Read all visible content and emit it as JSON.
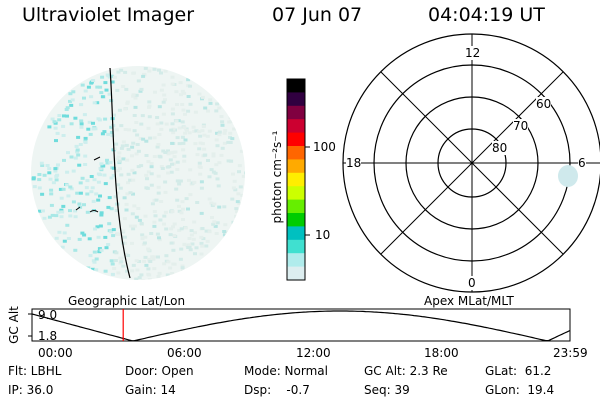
{
  "header": {
    "title": "Ultraviolet Imager",
    "date": "07 Jun 07",
    "time": "04:04:19 UT"
  },
  "colorbar": {
    "label": "photon cm⁻²s⁻¹",
    "ticks": [
      "100",
      "10"
    ],
    "scale": "log",
    "colors": [
      "#ddeef0",
      "#b0ecec",
      "#40e0d0",
      "#00c0c0",
      "#00cc00",
      "#66ee00",
      "#ccff00",
      "#ffee00",
      "#ffaa00",
      "#ff6600",
      "#ff0000",
      "#cc0030",
      "#800040",
      "#300040",
      "#000000"
    ]
  },
  "polar": {
    "mlt_labels": [
      "12",
      "6",
      "0",
      "18"
    ],
    "lat_labels": [
      "60",
      "70",
      "80"
    ]
  },
  "captions": {
    "left": "Geographic Lat/Lon",
    "right": "Apex MLat/MLT"
  },
  "gc_plot": {
    "ylabel": "GC Alt",
    "y_ticks": [
      "9.0",
      "1.8"
    ],
    "x_ticks": [
      "00:00",
      "06:00",
      "12:00",
      "18:00",
      "23:59"
    ],
    "marker_time": "04:04",
    "marker_color": "#ff0000"
  },
  "status": {
    "flt": "Flt: LBHL",
    "ip": "IP: 36.0",
    "door": "Door: Open",
    "gain": "Gain: 14",
    "mode": "Mode: Normal",
    "dsp": "Dsp:    -0.7",
    "gcalt": "GC Alt: 2.3 Re",
    "seq": "Seq: 39",
    "glat": "GLat:  61.2",
    "glon": "GLon:  19.4"
  }
}
